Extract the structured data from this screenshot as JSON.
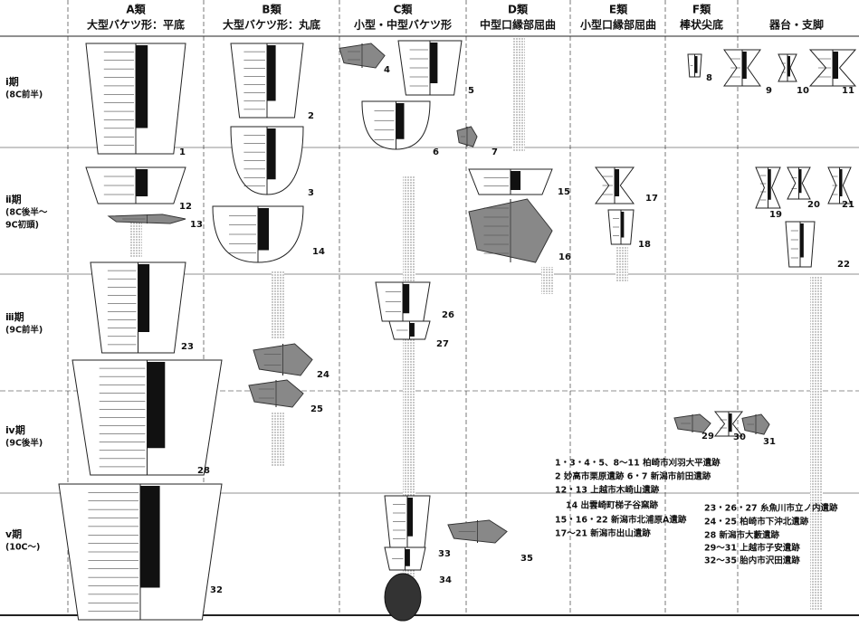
{
  "header": {
    "columns": [
      {
        "class": "A類",
        "description": "大型バケツ形：平底"
      },
      {
        "class": "B類",
        "description": "大型バケツ形：丸底"
      },
      {
        "class": "C類",
        "description": "小型・中型バケツ形"
      },
      {
        "class": "D類",
        "description": "中型口縁部屈曲"
      },
      {
        "class": "E類",
        "description": "小型口縁部屈曲"
      },
      {
        "class": "F類",
        "description": "棒状尖底"
      },
      {
        "description": "器台・支脚"
      }
    ]
  },
  "periods": [
    {
      "name": "ⅰ期",
      "era": [
        "(8C前半)"
      ]
    },
    {
      "name": "ⅱ期",
      "era": [
        "(8C後半～",
        "9C初頭)"
      ]
    },
    {
      "name": "ⅲ期",
      "era": [
        "(9C前半)"
      ]
    },
    {
      "name": "ⅳ期",
      "era": [
        "(9C後半)"
      ]
    },
    {
      "name": "ⅴ期",
      "era": [
        "(10C～)"
      ]
    }
  ],
  "figure_numbers": [
    "1",
    "2",
    "3",
    "4",
    "5",
    "6",
    "7",
    "8",
    "9",
    "10",
    "11",
    "12",
    "13",
    "14",
    "15",
    "16",
    "17",
    "18",
    "19",
    "20",
    "21",
    "22",
    "23",
    "24",
    "25",
    "26",
    "27",
    "28",
    "29",
    "30",
    "31",
    "32",
    "33",
    "34",
    "35"
  ],
  "sites": [
    "1・3・4・5、8～11 柏崎市刈羽大平遺跡",
    "2 妙高市栗原遺跡 6・7 新潟市前田遺跡",
    "12・13 上越市木崎山遺跡",
    "14 出雲崎町梯子谷窯跡",
    "15・16・22 新潟市北浦原A遺跡",
    "17～21 新潟市出山遺跡",
    "23・26・27 糸魚川市立ノ内遺跡",
    "24・25 柏崎市下沖北遺跡",
    "28 新潟市大藪遺跡",
    "29～31 上越市子安遺跡",
    "32～35 胎内市沢田遺跡"
  ]
}
